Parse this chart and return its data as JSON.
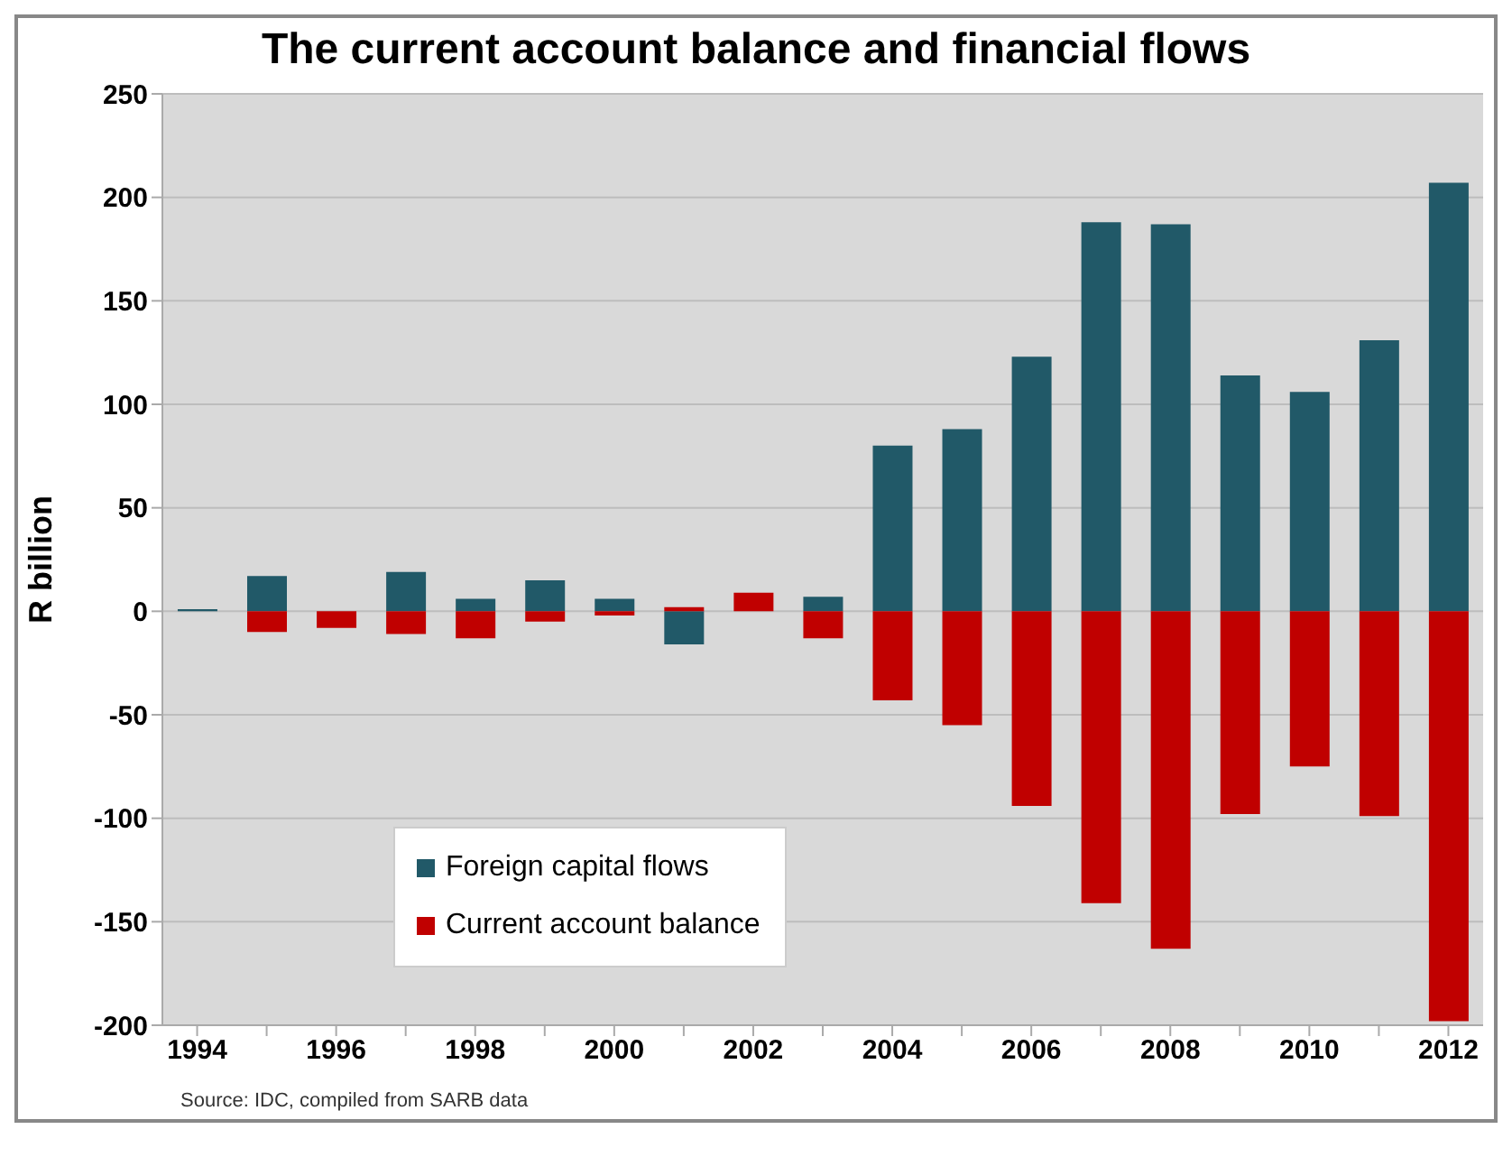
{
  "chart_data": {
    "type": "bar",
    "title": "The current account balance and financial flows",
    "ylabel": "R billion",
    "annotations": [
      "Source: IDC, compiled from SARB data"
    ],
    "categories": [
      "1994",
      null,
      "1996",
      null,
      "1998",
      null,
      "2000",
      null,
      "2002",
      null,
      "2004",
      null,
      "2006",
      null,
      "2008",
      null,
      "2010",
      null,
      "2012"
    ],
    "series": [
      {
        "name": "Foreign capital flows",
        "color": "#215968",
        "values": [
          1,
          17,
          0,
          19,
          6,
          15,
          6,
          -16,
          0,
          7,
          80,
          88,
          123,
          188,
          187,
          114,
          106,
          131,
          207
        ]
      },
      {
        "name": "Current account balance",
        "color": "#c00000",
        "values": [
          0,
          -10,
          -8,
          -11,
          -13,
          -5,
          -2,
          2,
          9,
          -13,
          -43,
          -55,
          -94,
          -141,
          -163,
          -98,
          -75,
          -99,
          -198
        ]
      }
    ],
    "stacked": true,
    "ylim": [
      -200,
      250
    ],
    "yticks": [
      -200,
      -150,
      -100,
      -50,
      0,
      50,
      100,
      150,
      200,
      250
    ],
    "grid": "y",
    "legend": "bottom left"
  }
}
